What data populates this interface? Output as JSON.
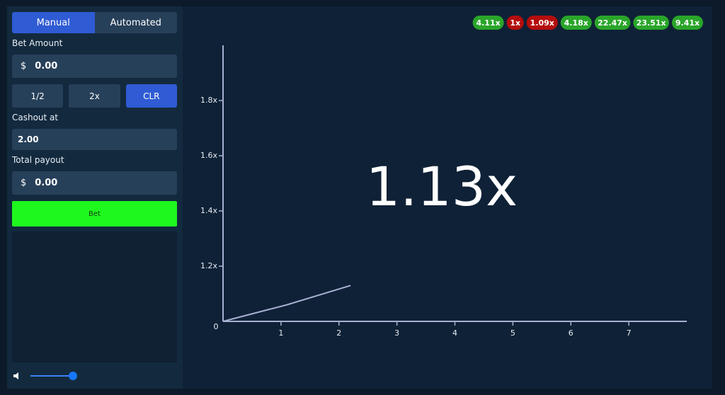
{
  "controls": {
    "tabs": [
      "Manual",
      "Automated"
    ],
    "bet_label": "Bet Amount",
    "currency": "$",
    "bet_amount": "0.00",
    "quick_buttons": [
      "1/2",
      "2x",
      "CLR"
    ],
    "cashout_label": "Cashout at",
    "cashout_value": "2.00",
    "payout_label": "Total payout",
    "payout_currency": "$",
    "payout_value": "0.00",
    "bet_button": "Bet"
  },
  "history": [
    {
      "label": "4.11x",
      "color": "#2aa52a"
    },
    {
      "label": "1x",
      "color": "#b50d0d"
    },
    {
      "label": "1.09x",
      "color": "#b50d0d"
    },
    {
      "label": "4.18x",
      "color": "#2aa52a"
    },
    {
      "label": "22.47x",
      "color": "#2aa52a"
    },
    {
      "label": "23.51x",
      "color": "#2aa52a"
    },
    {
      "label": "9.41x",
      "color": "#2aa52a"
    }
  ],
  "current_multiplier": "1.13x",
  "chart_data": {
    "type": "line",
    "x": [
      0,
      1.1,
      2.2
    ],
    "values": [
      1,
      1.06,
      1.13
    ],
    "color": "#a7b0d3",
    "xlim": [
      0,
      8
    ],
    "ylim": [
      1,
      2
    ],
    "xticks": [
      0,
      1,
      2,
      3,
      4,
      5,
      6,
      7
    ],
    "yticks": [
      {
        "value": 1.2,
        "label": "1.2x"
      },
      {
        "value": 1.4,
        "label": "1.4x"
      },
      {
        "value": 1.6,
        "label": "1.6x"
      },
      {
        "value": 1.8,
        "label": "1.8x"
      }
    ]
  }
}
